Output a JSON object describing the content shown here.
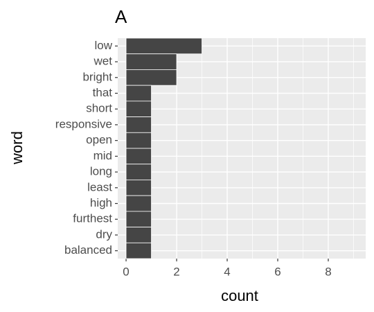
{
  "chart_data": {
    "type": "barh",
    "title": "A",
    "xlabel": "count",
    "ylabel": "word",
    "categories": [
      "low",
      "wet",
      "bright",
      "that",
      "short",
      "responsive",
      "open",
      "mid",
      "long",
      "least",
      "high",
      "furthest",
      "dry",
      "balanced"
    ],
    "values": [
      3,
      2,
      2,
      1,
      1,
      1,
      1,
      1,
      1,
      1,
      1,
      1,
      1,
      1
    ],
    "color": "#454545",
    "xlim": [
      -0.33,
      9.48
    ],
    "xticks": [
      0,
      2,
      4,
      6,
      8
    ],
    "grid": true
  }
}
